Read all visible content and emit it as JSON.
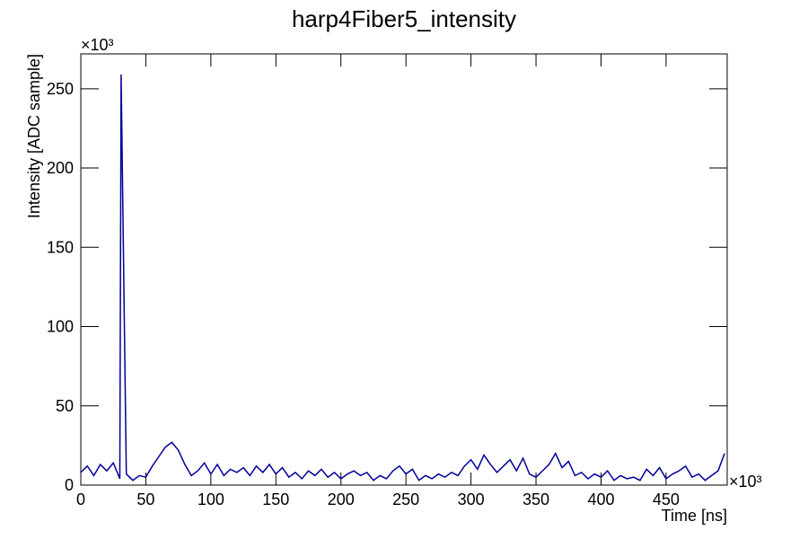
{
  "chart_data": {
    "type": "line",
    "title": "harp4Fiber5_intensity",
    "x_label": "Time [ns]",
    "y_label": "Intensity [ADC sample]",
    "x_multiplier": "×10³",
    "y_multiplier": "×10³",
    "color": "#000099",
    "x": [
      0,
      5,
      10,
      15,
      20,
      25,
      30,
      31,
      35,
      40,
      45,
      50,
      55,
      60,
      65,
      70,
      75,
      80,
      85,
      90,
      95,
      100,
      105,
      110,
      115,
      120,
      125,
      130,
      135,
      140,
      145,
      150,
      155,
      160,
      165,
      170,
      175,
      180,
      185,
      190,
      195,
      200,
      205,
      210,
      215,
      220,
      225,
      230,
      235,
      240,
      245,
      250,
      255,
      260,
      265,
      270,
      275,
      280,
      285,
      290,
      295,
      300,
      305,
      310,
      315,
      320,
      325,
      330,
      335,
      340,
      345,
      350,
      355,
      360,
      365,
      370,
      375,
      380,
      385,
      390,
      395,
      400,
      405,
      410,
      415,
      420,
      425,
      430,
      435,
      440,
      445,
      450,
      455,
      460,
      465,
      470,
      475,
      480,
      485,
      490,
      495
    ],
    "values": [
      8,
      12,
      6,
      13,
      9,
      14,
      4,
      259,
      7,
      3,
      6,
      5,
      12,
      18,
      24,
      27,
      22,
      13,
      6,
      9,
      14,
      7,
      13,
      6,
      10,
      8,
      11,
      6,
      12,
      8,
      13,
      7,
      11,
      5,
      8,
      4,
      9,
      6,
      10,
      5,
      8,
      4,
      7,
      9,
      6,
      8,
      3,
      6,
      4,
      9,
      12,
      7,
      10,
      3,
      6,
      4,
      7,
      5,
      8,
      6,
      12,
      16,
      10,
      19,
      13,
      8,
      12,
      16,
      9,
      17,
      7,
      5,
      9,
      13,
      20,
      11,
      15,
      6,
      8,
      4,
      7,
      5,
      9,
      3,
      6,
      4,
      5,
      3,
      10,
      6,
      11,
      4,
      7,
      9,
      12,
      5,
      7,
      3,
      6,
      9,
      20
    ],
    "xlim": [
      0,
      497
    ],
    "ylim": [
      0,
      272
    ],
    "xticks": [
      0,
      50,
      100,
      150,
      200,
      250,
      300,
      350,
      400,
      450
    ],
    "yticks": [
      0,
      50,
      100,
      150,
      200,
      250
    ]
  }
}
